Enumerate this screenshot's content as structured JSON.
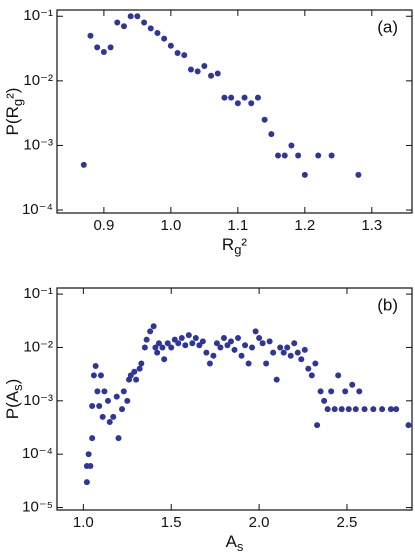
{
  "chart_data": [
    {
      "type": "scatter",
      "annotation": "(a)",
      "xlabel": "Rg²",
      "ylabel": "P(Rg²)",
      "color": "#2f3699",
      "log_y": true,
      "x": [
        0.87,
        0.88,
        0.89,
        0.9,
        0.91,
        0.92,
        0.93,
        0.94,
        0.95,
        0.96,
        0.97,
        0.98,
        0.99,
        1.0,
        1.01,
        1.02,
        1.03,
        1.04,
        1.05,
        1.06,
        1.07,
        1.08,
        1.09,
        1.1,
        1.11,
        1.12,
        1.13,
        1.14,
        1.15,
        1.16,
        1.17,
        1.18,
        1.19,
        1.2,
        1.22,
        1.24,
        1.28
      ],
      "y": [
        0.0005,
        0.05,
        0.033,
        0.028,
        0.033,
        0.08,
        0.07,
        0.1,
        0.1,
        0.08,
        0.065,
        0.055,
        0.045,
        0.035,
        0.027,
        0.025,
        0.015,
        0.014,
        0.017,
        0.012,
        0.013,
        0.0055,
        0.0055,
        0.0045,
        0.0055,
        0.0045,
        0.0055,
        0.0025,
        0.0015,
        0.0007,
        0.0007,
        0.001,
        0.0007,
        0.00035,
        0.0007,
        0.0007,
        0.00035
      ],
      "xlim": [
        0.83,
        1.36
      ],
      "ylim": [
        9e-05,
        0.125
      ],
      "xticks": [
        0.9,
        {
          "value": 1,
          "label": "1.0"
        },
        1.1,
        1.2,
        1.3
      ],
      "yticks": [
        {
          "value": 0.0001,
          "label": "10⁻⁴"
        },
        {
          "value": 0.001,
          "label": "10⁻³"
        },
        {
          "value": 0.01,
          "label": "10⁻²"
        },
        {
          "value": 0.1,
          "label": "10⁻¹"
        }
      ]
    },
    {
      "type": "scatter",
      "annotation": "(b)",
      "xlabel": "As",
      "ylabel": "P(As)",
      "color": "#2f3699",
      "log_y": true,
      "x": [
        1.02,
        1.02,
        1.03,
        1.04,
        1.05,
        1.05,
        1.06,
        1.07,
        1.08,
        1.09,
        1.1,
        1.11,
        1.12,
        1.14,
        1.15,
        1.17,
        1.19,
        1.2,
        1.22,
        1.23,
        1.25,
        1.26,
        1.27,
        1.29,
        1.3,
        1.32,
        1.33,
        1.35,
        1.36,
        1.38,
        1.4,
        1.41,
        1.42,
        1.43,
        1.45,
        1.46,
        1.48,
        1.5,
        1.52,
        1.54,
        1.56,
        1.58,
        1.6,
        1.62,
        1.64,
        1.66,
        1.68,
        1.7,
        1.72,
        1.74,
        1.76,
        1.78,
        1.8,
        1.82,
        1.84,
        1.86,
        1.88,
        1.9,
        1.92,
        1.94,
        1.96,
        1.98,
        2.0,
        2.02,
        2.04,
        2.06,
        2.08,
        2.1,
        2.12,
        2.14,
        2.16,
        2.18,
        2.2,
        2.22,
        2.24,
        2.26,
        2.28,
        2.3,
        2.32,
        2.33,
        2.35,
        2.37,
        2.39,
        2.41,
        2.43,
        2.45,
        2.47,
        2.49,
        2.51,
        2.53,
        2.55,
        2.57,
        2.6,
        2.65,
        2.7,
        2.75,
        2.78,
        2.85
      ],
      "y": [
        3e-05,
        6e-05,
        0.0001,
        6e-05,
        0.0002,
        0.0008,
        0.003,
        0.0045,
        0.0015,
        0.0008,
        0.003,
        0.0005,
        0.0015,
        0.001,
        0.0004,
        0.0005,
        0.0012,
        0.0002,
        0.0007,
        0.0015,
        0.001,
        0.0025,
        0.003,
        0.0035,
        0.0025,
        0.004,
        0.005,
        0.01,
        0.014,
        0.02,
        0.025,
        0.01,
        0.008,
        0.012,
        0.01,
        0.006,
        0.012,
        0.01,
        0.014,
        0.012,
        0.015,
        0.011,
        0.017,
        0.012,
        0.015,
        0.011,
        0.013,
        0.008,
        0.005,
        0.007,
        0.012,
        0.01,
        0.015,
        0.011,
        0.013,
        0.009,
        0.015,
        0.007,
        0.011,
        0.005,
        0.01,
        0.02,
        0.015,
        0.012,
        0.005,
        0.013,
        0.008,
        0.0025,
        0.01,
        0.008,
        0.01,
        0.007,
        0.012,
        0.008,
        0.006,
        0.009,
        0.004,
        0.003,
        0.005,
        0.00035,
        0.0015,
        0.001,
        0.0007,
        0.0015,
        0.0007,
        0.003,
        0.0007,
        0.0015,
        0.0007,
        0.002,
        0.0007,
        0.0015,
        0.0007,
        0.0007,
        0.0007,
        0.0007,
        0.0007,
        0.00035
      ],
      "xlim": [
        0.85,
        2.87
      ],
      "ylim": [
        9e-06,
        0.13
      ],
      "xticks": [
        {
          "value": 1,
          "label": "1.0"
        },
        1.5,
        {
          "value": 2,
          "label": "2.0"
        },
        2.5
      ],
      "yticks": [
        {
          "value": 1e-05,
          "label": "10⁻⁵"
        },
        {
          "value": 0.0001,
          "label": "10⁻⁴"
        },
        {
          "value": 0.001,
          "label": "10⁻³"
        },
        {
          "value": 0.01,
          "label": "10⁻²"
        },
        {
          "value": 0.1,
          "label": "10⁻¹"
        }
      ]
    }
  ]
}
